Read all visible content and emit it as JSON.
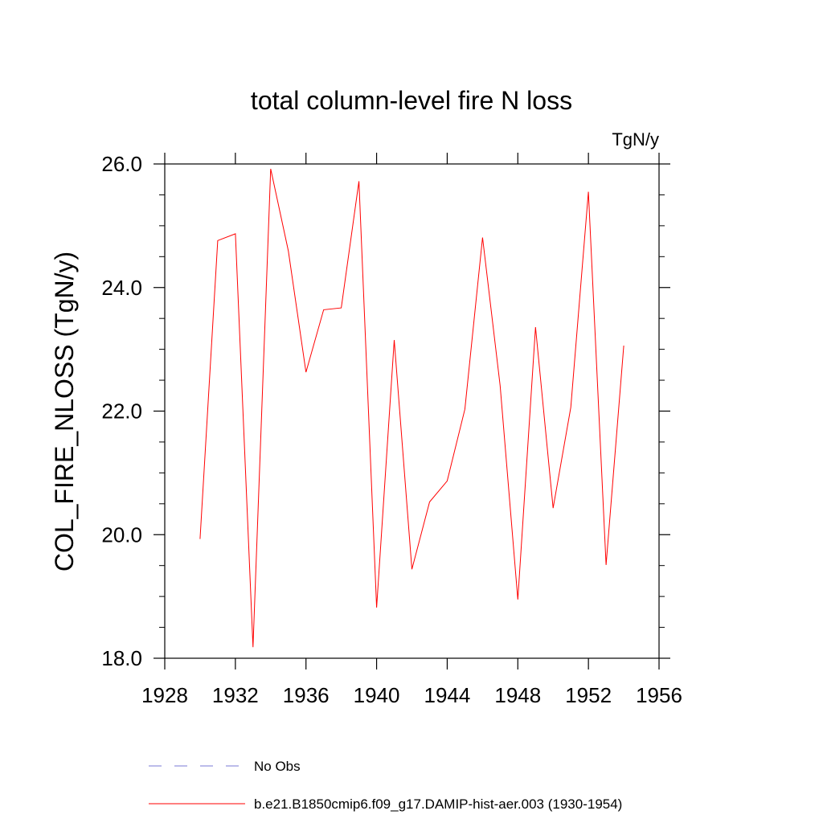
{
  "chart_data": {
    "type": "line",
    "title": "total column-level fire N loss",
    "units_label": "TgN/y",
    "ylabel": "COL_FIRE_NLOSS  (TgN/y)",
    "xlabel": "",
    "xlim": [
      1928,
      1956
    ],
    "ylim": [
      18.0,
      26.0
    ],
    "x_ticks": [
      1928,
      1932,
      1936,
      1940,
      1944,
      1948,
      1952,
      1956
    ],
    "x_tick_labels": [
      "1928",
      "1932",
      "1936",
      "1940",
      "1944",
      "1948",
      "1952",
      "1956"
    ],
    "y_ticks": [
      18.0,
      20.0,
      22.0,
      24.0,
      26.0
    ],
    "y_tick_labels": [
      "18.0",
      "20.0",
      "22.0",
      "24.0",
      "26.0"
    ],
    "grid": false,
    "legend_position": "bottom",
    "series": [
      {
        "name": "b.e21.B1850cmip6.f09_g17.DAMIP-hist-aer.003 (1930-1954)",
        "color": "#ff0000",
        "style": "solid",
        "x": [
          1930,
          1931,
          1932,
          1933,
          1934,
          1935,
          1936,
          1937,
          1938,
          1939,
          1940,
          1941,
          1942,
          1943,
          1944,
          1945,
          1946,
          1947,
          1948,
          1949,
          1950,
          1951,
          1952,
          1953,
          1954
        ],
        "y": [
          19.93,
          24.76,
          24.87,
          18.18,
          25.92,
          24.59,
          22.63,
          23.64,
          23.67,
          25.72,
          18.82,
          23.15,
          19.44,
          20.53,
          20.87,
          22.03,
          24.81,
          22.41,
          18.95,
          23.36,
          20.43,
          22.06,
          25.55,
          19.51,
          23.06
        ]
      }
    ],
    "legend": [
      {
        "label": "No Obs",
        "color": "#7a7ad6",
        "style": "dashed"
      },
      {
        "label": "b.e21.B1850cmip6.f09_g17.DAMIP-hist-aer.003 (1930-1954)",
        "color": "#ff0000",
        "style": "solid"
      }
    ]
  }
}
